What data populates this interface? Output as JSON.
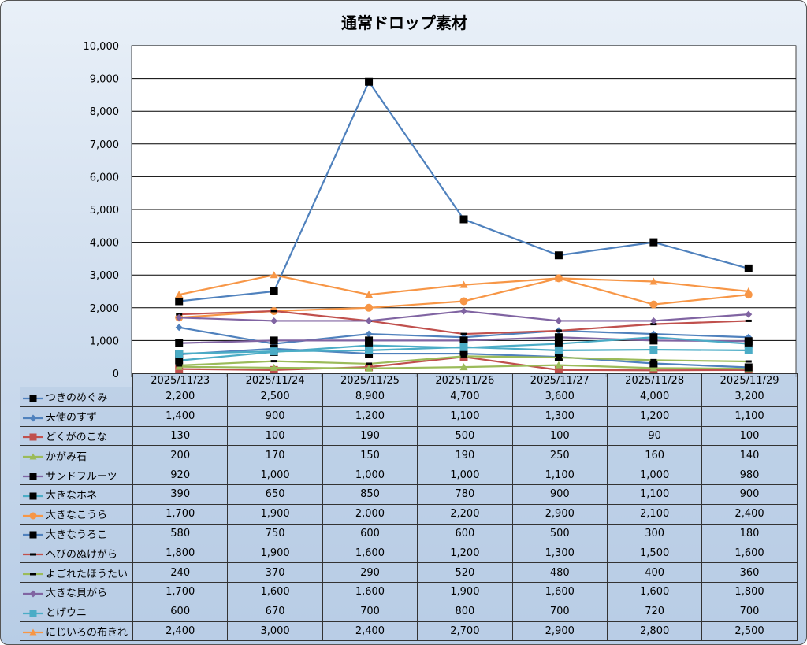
{
  "chart_data": {
    "type": "line",
    "title": "通常ドロップ素材",
    "xlabel": "",
    "ylabel": "",
    "ylim": [
      0,
      10000
    ],
    "yticks": [
      "0",
      "1,000",
      "2,000",
      "3,000",
      "4,000",
      "5,000",
      "6,000",
      "7,000",
      "8,000",
      "9,000",
      "10,000"
    ],
    "grid": true,
    "legend": "data-table-bottom",
    "categories": [
      "2025/11/23",
      "2025/11/24",
      "2025/11/25",
      "2025/11/26",
      "2025/11/27",
      "2025/11/28",
      "2025/11/29"
    ],
    "series": [
      {
        "name": "つきのめぐみ",
        "color": "#4f81bd",
        "marker": "square",
        "marker_color": "#000000",
        "values": [
          2200,
          2500,
          8900,
          4700,
          3600,
          4000,
          3200
        ],
        "labels": [
          "2,200",
          "2,500",
          "8,900",
          "4,700",
          "3,600",
          "4,000",
          "3,200"
        ]
      },
      {
        "name": "天使のすず",
        "color": "#4f81bd",
        "marker": "diamond",
        "marker_color": "#4f81bd",
        "values": [
          1400,
          900,
          1200,
          1100,
          1300,
          1200,
          1100
        ],
        "labels": [
          "1,400",
          "900",
          "1,200",
          "1,100",
          "1,300",
          "1,200",
          "1,100"
        ]
      },
      {
        "name": "どくがのこな",
        "color": "#c0504d",
        "marker": "square",
        "marker_color": "#c0504d",
        "values": [
          130,
          100,
          190,
          500,
          100,
          90,
          100
        ],
        "labels": [
          "130",
          "100",
          "190",
          "500",
          "100",
          "90",
          "100"
        ]
      },
      {
        "name": "かがみ石",
        "color": "#9bbb59",
        "marker": "triangle",
        "marker_color": "#9bbb59",
        "values": [
          200,
          170,
          150,
          190,
          250,
          160,
          140
        ],
        "labels": [
          "200",
          "170",
          "150",
          "190",
          "250",
          "160",
          "140"
        ]
      },
      {
        "name": "サンドフルーツ",
        "color": "#8064a2",
        "marker": "square",
        "marker_color": "#000000",
        "values": [
          920,
          1000,
          1000,
          1000,
          1100,
          1000,
          980
        ],
        "labels": [
          "920",
          "1,000",
          "1,000",
          "1,000",
          "1,100",
          "1,000",
          "980"
        ]
      },
      {
        "name": "大きなホネ",
        "color": "#4bacc6",
        "marker": "square",
        "marker_color": "#000000",
        "values": [
          390,
          650,
          850,
          780,
          900,
          1100,
          900
        ],
        "labels": [
          "390",
          "650",
          "850",
          "780",
          "900",
          "1,100",
          "900"
        ]
      },
      {
        "name": "大きなこうら",
        "color": "#f79646",
        "marker": "circle",
        "marker_color": "#f79646",
        "values": [
          1700,
          1900,
          2000,
          2200,
          2900,
          2100,
          2400
        ],
        "labels": [
          "1,700",
          "1,900",
          "2,000",
          "2,200",
          "2,900",
          "2,100",
          "2,400"
        ]
      },
      {
        "name": "大きなうろこ",
        "color": "#4f81bd",
        "marker": "square",
        "marker_color": "#000000",
        "values": [
          580,
          750,
          600,
          600,
          500,
          300,
          180
        ],
        "labels": [
          "580",
          "750",
          "600",
          "600",
          "500",
          "300",
          "180"
        ]
      },
      {
        "name": "へびのぬけがら",
        "color": "#c0504d",
        "marker": "dash",
        "marker_color": "#000000",
        "values": [
          1800,
          1900,
          1600,
          1200,
          1300,
          1500,
          1600
        ],
        "labels": [
          "1,800",
          "1,900",
          "1,600",
          "1,200",
          "1,300",
          "1,500",
          "1,600"
        ]
      },
      {
        "name": "よごれたほうたい",
        "color": "#9bbb59",
        "marker": "dash",
        "marker_color": "#000000",
        "values": [
          240,
          370,
          290,
          520,
          480,
          400,
          360
        ],
        "labels": [
          "240",
          "370",
          "290",
          "520",
          "480",
          "400",
          "360"
        ]
      },
      {
        "name": "大きな貝がら",
        "color": "#8064a2",
        "marker": "diamond",
        "marker_color": "#8064a2",
        "values": [
          1700,
          1600,
          1600,
          1900,
          1600,
          1600,
          1800
        ],
        "labels": [
          "1,700",
          "1,600",
          "1,600",
          "1,900",
          "1,600",
          "1,600",
          "1,800"
        ]
      },
      {
        "name": "とげウニ",
        "color": "#4bacc6",
        "marker": "square",
        "marker_color": "#4bacc6",
        "values": [
          600,
          670,
          700,
          800,
          700,
          720,
          700
        ],
        "labels": [
          "600",
          "670",
          "700",
          "800",
          "700",
          "720",
          "700"
        ]
      },
      {
        "name": "にじいろの布きれ",
        "color": "#f79646",
        "marker": "triangle",
        "marker_color": "#f79646",
        "values": [
          2400,
          3000,
          2400,
          2700,
          2900,
          2800,
          2500
        ],
        "labels": [
          "2,400",
          "3,000",
          "2,400",
          "2,700",
          "2,900",
          "2,800",
          "2,500"
        ]
      }
    ]
  }
}
